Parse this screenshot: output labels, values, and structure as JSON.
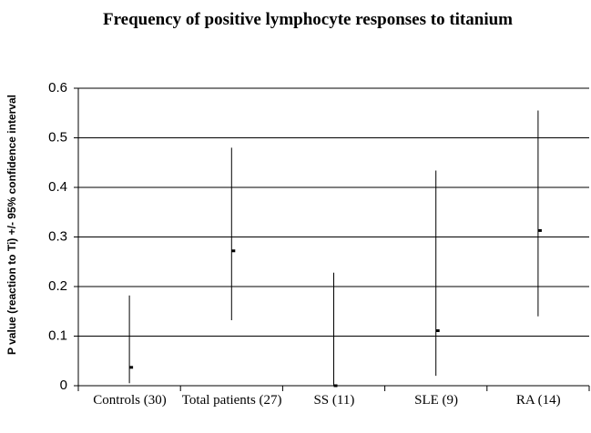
{
  "chart_data": {
    "type": "errorbar",
    "title": "Frequency of positive lymphocyte responses to titanium",
    "y_label": "P value (reaction to Ti) +/- 95% confidence interval",
    "categories": [
      "Controls (30)",
      "Total patients (27)",
      "SS (11)",
      "SLE (9)",
      "RA (14)"
    ],
    "values": [
      0.037,
      0.272,
      0.0,
      0.111,
      0.313
    ],
    "low": [
      0.005,
      0.132,
      0.0,
      0.02,
      0.14
    ],
    "high": [
      0.182,
      0.48,
      0.228,
      0.434,
      0.555
    ],
    "color": "#000000",
    "ylim": [
      0,
      0.6
    ],
    "yticks": [
      0,
      0.1,
      0.2,
      0.3,
      0.4,
      0.5,
      0.6
    ],
    "grid": true
  }
}
